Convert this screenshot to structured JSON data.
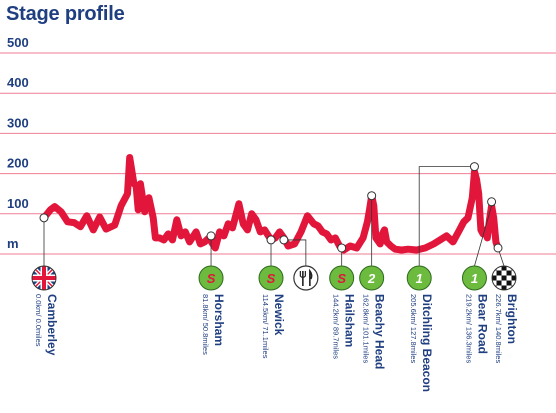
{
  "title": "Stage profile",
  "chart_data": {
    "type": "area",
    "title": "Stage profile",
    "xlabel": "",
    "ylabel": "m",
    "yticks": [
      "500",
      "400",
      "300",
      "200",
      "100",
      "m"
    ],
    "ylim": [
      0,
      500
    ],
    "xlim": [
      0,
      226
    ],
    "grid": true,
    "colors": {
      "line": "#e2163b",
      "grid": "#e2163b",
      "text": "#1f3f80",
      "sprint": "#6cbb3f",
      "climb": "#6cbb3f",
      "feed": "#ffffff"
    },
    "profile": [
      [
        0,
        90
      ],
      [
        3,
        110
      ],
      [
        5,
        118
      ],
      [
        8,
        105
      ],
      [
        11,
        80
      ],
      [
        14,
        78
      ],
      [
        17,
        68
      ],
      [
        20,
        95
      ],
      [
        23,
        60
      ],
      [
        26,
        92
      ],
      [
        29,
        62
      ],
      [
        33,
        72
      ],
      [
        36,
        120
      ],
      [
        39,
        150
      ],
      [
        40,
        240
      ],
      [
        42,
        175
      ],
      [
        43,
        170
      ],
      [
        44,
        110
      ],
      [
        45,
        175
      ],
      [
        47,
        105
      ],
      [
        49,
        140
      ],
      [
        51,
        90
      ],
      [
        52,
        40
      ],
      [
        54,
        40
      ],
      [
        56,
        35
      ],
      [
        58,
        50
      ],
      [
        60,
        35
      ],
      [
        62,
        85
      ],
      [
        64,
        45
      ],
      [
        66,
        55
      ],
      [
        68,
        30
      ],
      [
        71,
        55
      ],
      [
        73,
        25
      ],
      [
        75,
        30
      ],
      [
        77,
        40
      ],
      [
        80,
        15
      ],
      [
        82,
        55
      ],
      [
        84,
        45
      ],
      [
        86,
        75
      ],
      [
        88,
        65
      ],
      [
        91,
        125
      ],
      [
        93,
        75
      ],
      [
        95,
        60
      ],
      [
        97,
        100
      ],
      [
        99,
        85
      ],
      [
        101,
        55
      ],
      [
        103,
        60
      ],
      [
        106,
        35
      ],
      [
        108,
        40
      ],
      [
        110,
        55
      ],
      [
        112,
        40
      ],
      [
        114,
        20
      ],
      [
        117,
        25
      ],
      [
        120,
        55
      ],
      [
        123,
        95
      ],
      [
        126,
        75
      ],
      [
        128,
        70
      ],
      [
        130,
        55
      ],
      [
        132,
        50
      ],
      [
        134,
        35
      ],
      [
        136,
        40
      ],
      [
        138,
        20
      ],
      [
        140,
        10
      ],
      [
        143,
        20
      ],
      [
        146,
        15
      ],
      [
        149,
        40
      ],
      [
        151,
        80
      ],
      [
        152,
        110
      ],
      [
        153,
        145
      ],
      [
        154,
        120
      ],
      [
        155,
        40
      ],
      [
        157,
        25
      ],
      [
        158,
        50
      ],
      [
        159,
        60
      ],
      [
        160,
        30
      ],
      [
        162,
        20
      ],
      [
        164,
        12
      ],
      [
        167,
        10
      ],
      [
        170,
        12
      ],
      [
        174,
        10
      ],
      [
        178,
        15
      ],
      [
        182,
        25
      ],
      [
        185,
        35
      ],
      [
        188,
        45
      ],
      [
        191,
        30
      ],
      [
        194,
        60
      ],
      [
        196,
        80
      ],
      [
        198,
        90
      ],
      [
        200,
        140
      ],
      [
        201,
        205
      ],
      [
        202,
        185
      ],
      [
        203,
        150
      ],
      [
        204,
        60
      ],
      [
        205,
        50
      ],
      [
        206,
        60
      ],
      [
        207,
        40
      ],
      [
        208,
        85
      ],
      [
        209,
        120
      ],
      [
        210,
        90
      ],
      [
        211,
        30
      ],
      [
        212,
        15
      ]
    ],
    "points": [
      {
        "name": "Camberley",
        "distance": "0.0km/ 0.0miles",
        "x": 0,
        "y": 90,
        "type": "start"
      },
      {
        "name": "Horsham",
        "distance": "81.8km/ 50.8miles",
        "x": 78,
        "y": 45,
        "type": "sprint",
        "badge": "S"
      },
      {
        "name": "Newick",
        "distance": "114.5km/ 71.1miles",
        "x": 106,
        "y": 35,
        "type": "sprint",
        "badge": "S"
      },
      {
        "name": "",
        "distance": "",
        "x": 112,
        "y": 35,
        "type": "feed"
      },
      {
        "name": "Hailsham",
        "distance": "144.2km/ 89.7miles",
        "x": 139,
        "y": 15,
        "type": "sprint",
        "badge": "S"
      },
      {
        "name": "Beachy Head",
        "distance": "162.8km/ 101.1miles",
        "x": 153,
        "y": 145,
        "type": "climb",
        "badge": "2"
      },
      {
        "name": "Ditchling Beacon",
        "distance": "205.6km/ 127.8miles",
        "x": 178,
        "y": 15,
        "type": "climb",
        "badge": "1"
      },
      {
        "name": "Bear Road",
        "distance": "219.2km/ 136.3miles",
        "x": 201,
        "y": 205,
        "type": "climb",
        "badge": "1"
      },
      {
        "name": "Brighton",
        "distance": "226.7km/ 140.8miles",
        "x": 212,
        "y": 15,
        "type": "finish"
      }
    ]
  }
}
